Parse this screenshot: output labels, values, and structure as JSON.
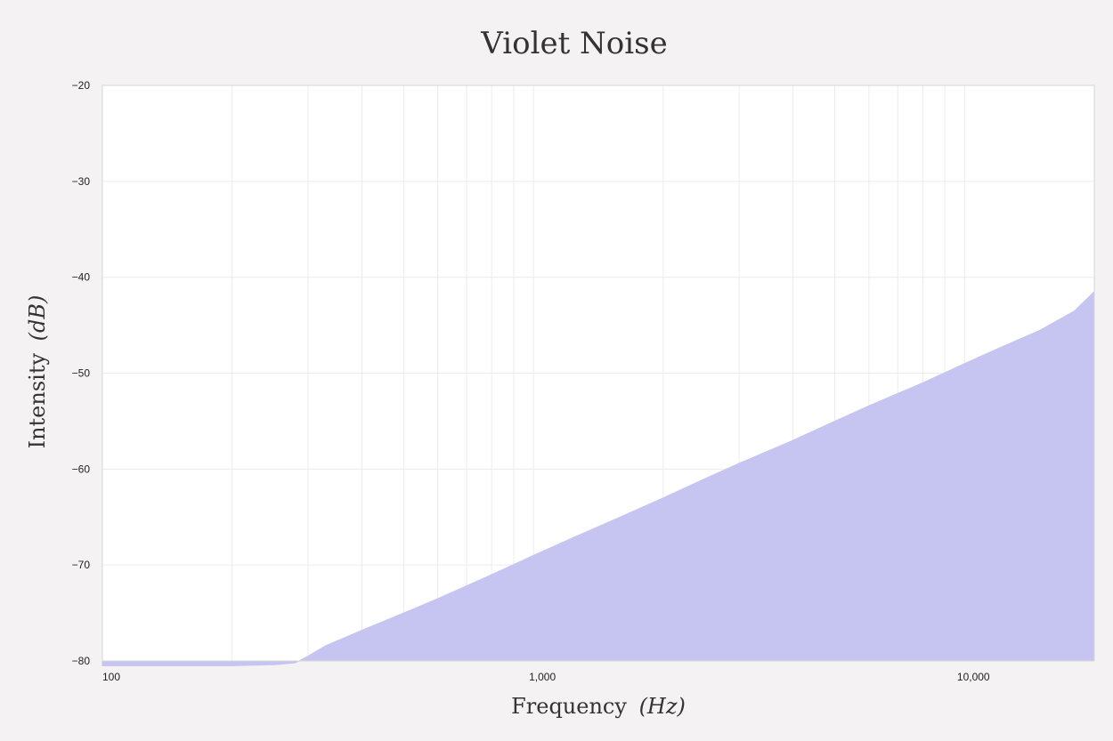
{
  "chart_data": {
    "type": "area",
    "title": "Violet Noise",
    "xlabel": "Frequency",
    "xlabel_unit": "(Hz)",
    "ylabel": "Intensity",
    "ylabel_unit": "(dB)",
    "xscale": "log",
    "xlim": [
      100,
      20000
    ],
    "ylim": [
      -80,
      -20
    ],
    "x_ticks": [
      100,
      1000,
      10000
    ],
    "x_tick_labels": [
      "100",
      "1,000",
      "10,000"
    ],
    "y_ticks": [
      -20,
      -30,
      -40,
      -50,
      -60,
      -70,
      -80
    ],
    "y_tick_labels": [
      "−20",
      "−30",
      "−40",
      "−50",
      "−60",
      "−70",
      "−80"
    ],
    "grid": true,
    "legend": "none",
    "series": [
      {
        "x": [
          100,
          200,
          250,
          280,
          300,
          330,
          400,
          500,
          600,
          800,
          1000,
          1200,
          1500,
          2000,
          2500,
          3000,
          4000,
          5000,
          6000,
          8000,
          10000,
          12000,
          15000,
          18000,
          20000
        ],
        "values": [
          -80.5,
          -80.5,
          -80.4,
          -80.2,
          -79.5,
          -78.4,
          -76.8,
          -75.0,
          -73.5,
          -71.0,
          -69.0,
          -67.4,
          -65.5,
          -63.0,
          -61.0,
          -59.4,
          -57.0,
          -55.0,
          -53.4,
          -51.0,
          -49.0,
          -47.4,
          -45.5,
          -43.5,
          -41.5
        ]
      }
    ],
    "colors": {
      "fill": "#c6c5f2",
      "plot_background": "#ffffff",
      "page_background": "#f4f2f3",
      "grid": "#ececec",
      "frame": "#d6d6d6"
    }
  }
}
